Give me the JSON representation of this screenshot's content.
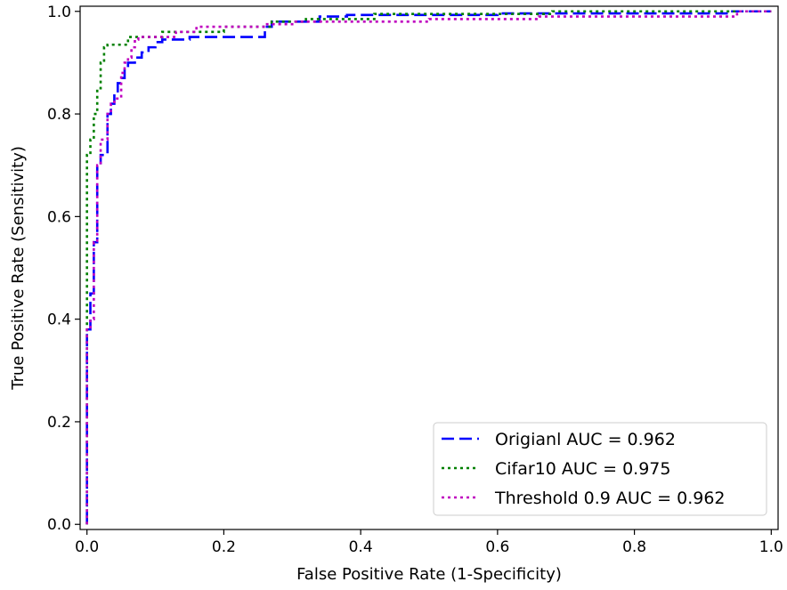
{
  "chart_data": {
    "type": "line",
    "title": "",
    "xlabel": "False Positive Rate (1-Specificity)",
    "ylabel": "True Positive Rate (Sensitivity)",
    "xlim": [
      -0.01,
      1.01
    ],
    "ylim": [
      -0.01,
      1.01
    ],
    "xticks": [
      0.0,
      0.2,
      0.4,
      0.6,
      0.8,
      1.0
    ],
    "yticks": [
      0.0,
      0.2,
      0.4,
      0.6,
      0.8,
      1.0
    ],
    "xtick_labels": [
      "0.0",
      "0.2",
      "0.4",
      "0.6",
      "0.8",
      "1.0"
    ],
    "ytick_labels": [
      "0.0",
      "0.2",
      "0.4",
      "0.6",
      "0.8",
      "1.0"
    ],
    "grid": false,
    "legend_position": "bottom-right",
    "series": [
      {
        "name": "Origianl AUC = 0.962",
        "color": "#0000ff",
        "line_style": "dashed",
        "x": [
          0.0,
          0.0,
          0.005,
          0.005,
          0.01,
          0.01,
          0.015,
          0.015,
          0.02,
          0.02,
          0.03,
          0.03,
          0.035,
          0.035,
          0.04,
          0.04,
          0.045,
          0.045,
          0.05,
          0.05,
          0.055,
          0.055,
          0.06,
          0.06,
          0.07,
          0.07,
          0.08,
          0.08,
          0.09,
          0.09,
          0.1,
          0.1,
          0.11,
          0.11,
          0.15,
          0.15,
          0.26,
          0.26,
          0.27,
          0.27,
          0.34,
          0.34,
          0.38,
          0.38,
          0.6,
          0.6,
          0.94,
          0.94,
          1.0
        ],
        "y": [
          0.0,
          0.38,
          0.38,
          0.45,
          0.45,
          0.55,
          0.55,
          0.7,
          0.7,
          0.72,
          0.72,
          0.8,
          0.8,
          0.82,
          0.82,
          0.84,
          0.84,
          0.86,
          0.86,
          0.87,
          0.87,
          0.89,
          0.89,
          0.9,
          0.9,
          0.91,
          0.91,
          0.92,
          0.92,
          0.93,
          0.93,
          0.94,
          0.94,
          0.945,
          0.945,
          0.95,
          0.95,
          0.97,
          0.97,
          0.98,
          0.98,
          0.99,
          0.99,
          0.993,
          0.993,
          0.996,
          0.996,
          1.0,
          1.0
        ]
      },
      {
        "name": "Cifar10 AUC = 0.975",
        "color": "#008000",
        "line_style": "dotted",
        "x": [
          0.0,
          0.0,
          0.005,
          0.005,
          0.01,
          0.01,
          0.015,
          0.015,
          0.02,
          0.02,
          0.025,
          0.025,
          0.03,
          0.03,
          0.06,
          0.06,
          0.11,
          0.11,
          0.2,
          0.2,
          0.27,
          0.27,
          0.32,
          0.32,
          0.42,
          0.42,
          0.68,
          0.68,
          1.0
        ],
        "y": [
          0.0,
          0.72,
          0.72,
          0.75,
          0.75,
          0.8,
          0.8,
          0.85,
          0.85,
          0.9,
          0.9,
          0.93,
          0.93,
          0.935,
          0.935,
          0.95,
          0.95,
          0.96,
          0.96,
          0.97,
          0.97,
          0.98,
          0.98,
          0.985,
          0.985,
          0.995,
          0.995,
          1.0,
          1.0
        ]
      },
      {
        "name": "Threshold 0.9 AUC = 0.962",
        "color": "#bf00bf",
        "line_style": "dotted",
        "x": [
          0.0,
          0.0,
          0.005,
          0.005,
          0.01,
          0.01,
          0.015,
          0.015,
          0.02,
          0.02,
          0.03,
          0.03,
          0.035,
          0.035,
          0.04,
          0.04,
          0.05,
          0.05,
          0.055,
          0.055,
          0.06,
          0.06,
          0.065,
          0.065,
          0.07,
          0.07,
          0.075,
          0.075,
          0.13,
          0.13,
          0.16,
          0.16,
          0.26,
          0.26,
          0.3,
          0.3,
          0.5,
          0.5,
          0.66,
          0.66,
          0.95,
          0.95,
          1.0
        ],
        "y": [
          0.0,
          0.38,
          0.38,
          0.4,
          0.4,
          0.55,
          0.55,
          0.7,
          0.7,
          0.75,
          0.75,
          0.8,
          0.8,
          0.82,
          0.82,
          0.83,
          0.83,
          0.88,
          0.88,
          0.9,
          0.9,
          0.91,
          0.91,
          0.93,
          0.93,
          0.945,
          0.945,
          0.95,
          0.95,
          0.96,
          0.96,
          0.97,
          0.97,
          0.975,
          0.975,
          0.98,
          0.98,
          0.985,
          0.985,
          0.99,
          0.99,
          1.0,
          1.0
        ]
      }
    ]
  }
}
